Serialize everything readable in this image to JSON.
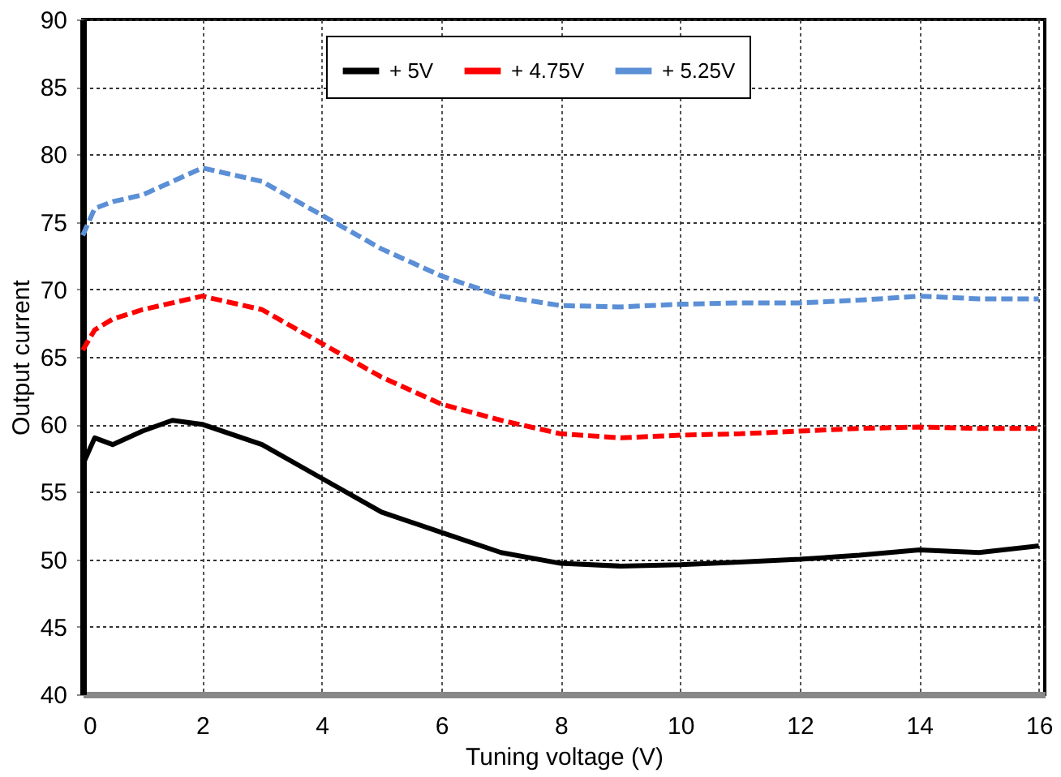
{
  "chart_data": {
    "type": "line",
    "xlabel": "Tuning voltage (V)",
    "ylabel": "Output current",
    "x": [
      0,
      0.2,
      0.5,
      1,
      1.5,
      2,
      3,
      4,
      5,
      6,
      7,
      8,
      9,
      10,
      11,
      12,
      13,
      14,
      15,
      16
    ],
    "series": [
      {
        "name": "+ 5V",
        "color": "#000000",
        "line_style": "solid",
        "values": [
          57,
          59,
          58.5,
          59.5,
          60.3,
          60,
          58.5,
          56,
          53.5,
          52,
          50.5,
          49.7,
          49.5,
          49.6,
          49.8,
          50,
          50.3,
          50.7,
          50.5,
          51
        ]
      },
      {
        "name": "+ 4.75V",
        "color": "#ff0000",
        "line_style": "dashed",
        "values": [
          65.5,
          67,
          67.8,
          68.5,
          69,
          69.5,
          68.5,
          66,
          63.5,
          61.5,
          60.3,
          59.3,
          59,
          59.2,
          59.3,
          59.5,
          59.7,
          59.8,
          59.7,
          59.7
        ]
      },
      {
        "name": "+ 5.25V",
        "color": "#5b8fd6",
        "line_style": "dashed",
        "values": [
          74,
          76,
          76.5,
          77,
          78,
          79,
          78,
          75.5,
          73,
          71,
          69.5,
          68.8,
          68.7,
          68.9,
          69,
          69,
          69.2,
          69.5,
          69.3,
          69.3
        ]
      }
    ],
    "xlim": [
      0,
      16.1
    ],
    "xticks": [
      0,
      2,
      4,
      6,
      8,
      10,
      12,
      14,
      16
    ],
    "ylim": [
      40,
      90
    ],
    "yticks": [
      40,
      45,
      50,
      55,
      60,
      65,
      70,
      75,
      80,
      85,
      90
    ],
    "grid": true,
    "legend": "top",
    "marker": "none"
  }
}
